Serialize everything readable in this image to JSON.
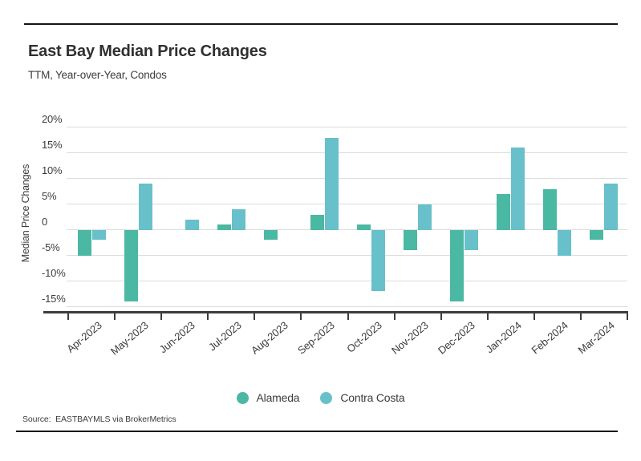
{
  "header": {
    "title": "East Bay Median Price Changes",
    "subtitle": "TTM, Year-over-Year, Condos"
  },
  "y_axis_title": "Median Price Changes",
  "source_note": "Source:  EASTBAYMLS via BrokerMetrics",
  "legend": [
    {
      "label": "Alameda",
      "color": "#4bb8a3"
    },
    {
      "label": "Contra Costa",
      "color": "#67c0ca"
    }
  ],
  "colors": {
    "alameda": "#4bb8a3",
    "contra_costa": "#67c0ca",
    "gridline": "#dcdcdc",
    "axis": "#3d3d3d",
    "text": "#3c3c3c",
    "rule": "#141414"
  },
  "chart_data": {
    "type": "bar",
    "title": "East Bay Median Price Changes",
    "subtitle": "TTM, Year-over-Year, Condos",
    "ylabel": "Median Price Changes",
    "xlabel": "",
    "categories": [
      "Apr-2023",
      "May-2023",
      "Jun-2023",
      "Jul-2023",
      "Aug-2023",
      "Sep-2023",
      "Oct-2023",
      "Nov-2023",
      "Dec-2023",
      "Jan-2024",
      "Feb-2024",
      "Mar-2024"
    ],
    "series": [
      {
        "name": "Alameda",
        "color": "#4bb8a3",
        "values": [
          -5,
          -14,
          null,
          1,
          -2,
          3,
          1,
          -4,
          -14,
          7,
          8,
          -2
        ]
      },
      {
        "name": "Contra Costa",
        "color": "#67c0ca",
        "values": [
          -2,
          9,
          2,
          4,
          null,
          18,
          -12,
          5,
          -4,
          16,
          -5,
          9
        ]
      }
    ],
    "y_ticks": [
      {
        "label": "20%",
        "value": 20
      },
      {
        "label": "15%",
        "value": 15
      },
      {
        "label": "10%",
        "value": 10
      },
      {
        "label": "5%",
        "value": 5
      },
      {
        "label": "0",
        "value": 0
      },
      {
        "label": "-5%",
        "value": -5
      },
      {
        "label": "-10%",
        "value": -10
      },
      {
        "label": "-15%",
        "value": -15
      }
    ],
    "unit": "%",
    "ylim": [
      -16,
      22
    ],
    "grid": true,
    "legend_position": "bottom"
  }
}
